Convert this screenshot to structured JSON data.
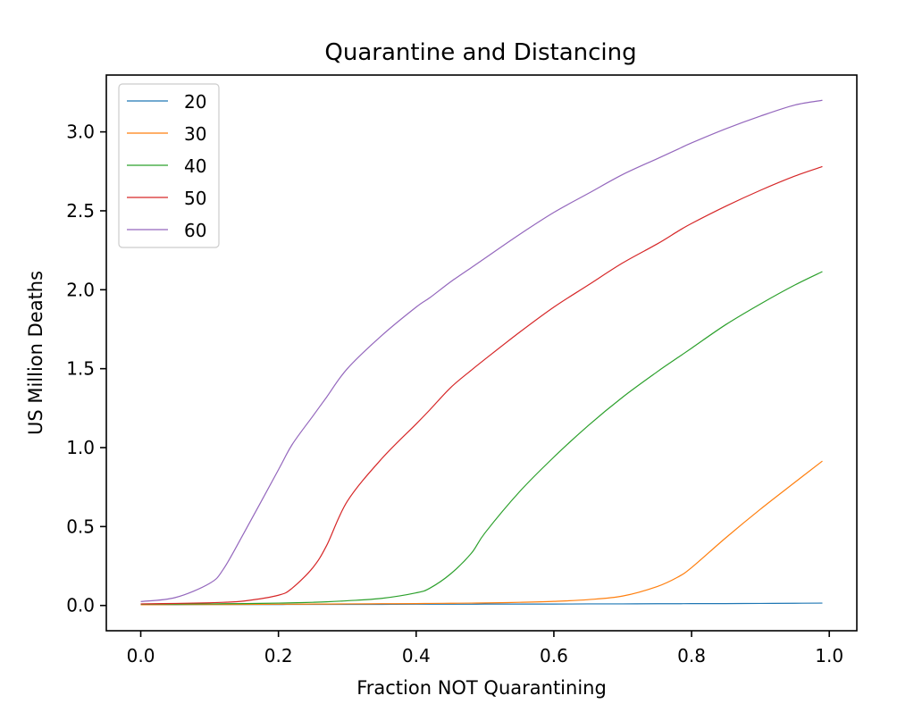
{
  "chart_data": {
    "type": "line",
    "title": "Quarantine and Distancing",
    "xlabel": "Fraction NOT Quarantining",
    "ylabel": "US Million Deaths",
    "xlim": [
      -0.05,
      1.04
    ],
    "ylim": [
      -0.16,
      3.36
    ],
    "xticks": [
      0.0,
      0.2,
      0.4,
      0.6,
      0.8,
      1.0
    ],
    "xtick_labels": [
      "0.0",
      "0.2",
      "0.4",
      "0.6",
      "0.8",
      "1.0"
    ],
    "yticks": [
      0.0,
      0.5,
      1.0,
      1.5,
      2.0,
      2.5,
      3.0
    ],
    "ytick_labels": [
      "0.0",
      "0.5",
      "1.0",
      "1.5",
      "2.0",
      "2.5",
      "3.0"
    ],
    "grid": false,
    "legend_position": "upper-left",
    "x": [
      0.0,
      0.05,
      0.1,
      0.12,
      0.15,
      0.2,
      0.22,
      0.25,
      0.27,
      0.3,
      0.35,
      0.4,
      0.42,
      0.45,
      0.48,
      0.5,
      0.55,
      0.6,
      0.65,
      0.7,
      0.75,
      0.78,
      0.8,
      0.85,
      0.9,
      0.95,
      0.99
    ],
    "series": [
      {
        "name": "20",
        "color": "#1f77b4",
        "values": [
          0.005,
          0.005,
          0.006,
          0.006,
          0.006,
          0.006,
          0.007,
          0.007,
          0.007,
          0.007,
          0.007,
          0.008,
          0.008,
          0.008,
          0.008,
          0.009,
          0.009,
          0.009,
          0.01,
          0.01,
          0.011,
          0.011,
          0.012,
          0.012,
          0.013,
          0.014,
          0.015
        ]
      },
      {
        "name": "30",
        "color": "#ff7f0e",
        "values": [
          0.005,
          0.006,
          0.006,
          0.006,
          0.007,
          0.008,
          0.008,
          0.009,
          0.009,
          0.01,
          0.011,
          0.012,
          0.013,
          0.014,
          0.015,
          0.016,
          0.02,
          0.026,
          0.037,
          0.06,
          0.12,
          0.18,
          0.24,
          0.43,
          0.61,
          0.78,
          0.915
        ]
      },
      {
        "name": "40",
        "color": "#2ca02c",
        "values": [
          0.008,
          0.009,
          0.01,
          0.011,
          0.012,
          0.015,
          0.017,
          0.02,
          0.023,
          0.03,
          0.045,
          0.08,
          0.11,
          0.2,
          0.33,
          0.46,
          0.72,
          0.94,
          1.14,
          1.32,
          1.48,
          1.57,
          1.63,
          1.78,
          1.91,
          2.03,
          2.115
        ]
      },
      {
        "name": "50",
        "color": "#d62728",
        "values": [
          0.01,
          0.013,
          0.017,
          0.02,
          0.028,
          0.065,
          0.11,
          0.24,
          0.38,
          0.66,
          0.93,
          1.15,
          1.24,
          1.38,
          1.49,
          1.56,
          1.73,
          1.89,
          2.03,
          2.17,
          2.29,
          2.37,
          2.42,
          2.53,
          2.63,
          2.72,
          2.78
        ]
      },
      {
        "name": "60",
        "color": "#9467bd",
        "values": [
          0.025,
          0.05,
          0.14,
          0.23,
          0.46,
          0.86,
          1.02,
          1.2,
          1.32,
          1.5,
          1.71,
          1.89,
          1.95,
          2.05,
          2.14,
          2.2,
          2.35,
          2.49,
          2.61,
          2.73,
          2.83,
          2.89,
          2.93,
          3.02,
          3.1,
          3.17,
          3.2
        ]
      }
    ]
  }
}
